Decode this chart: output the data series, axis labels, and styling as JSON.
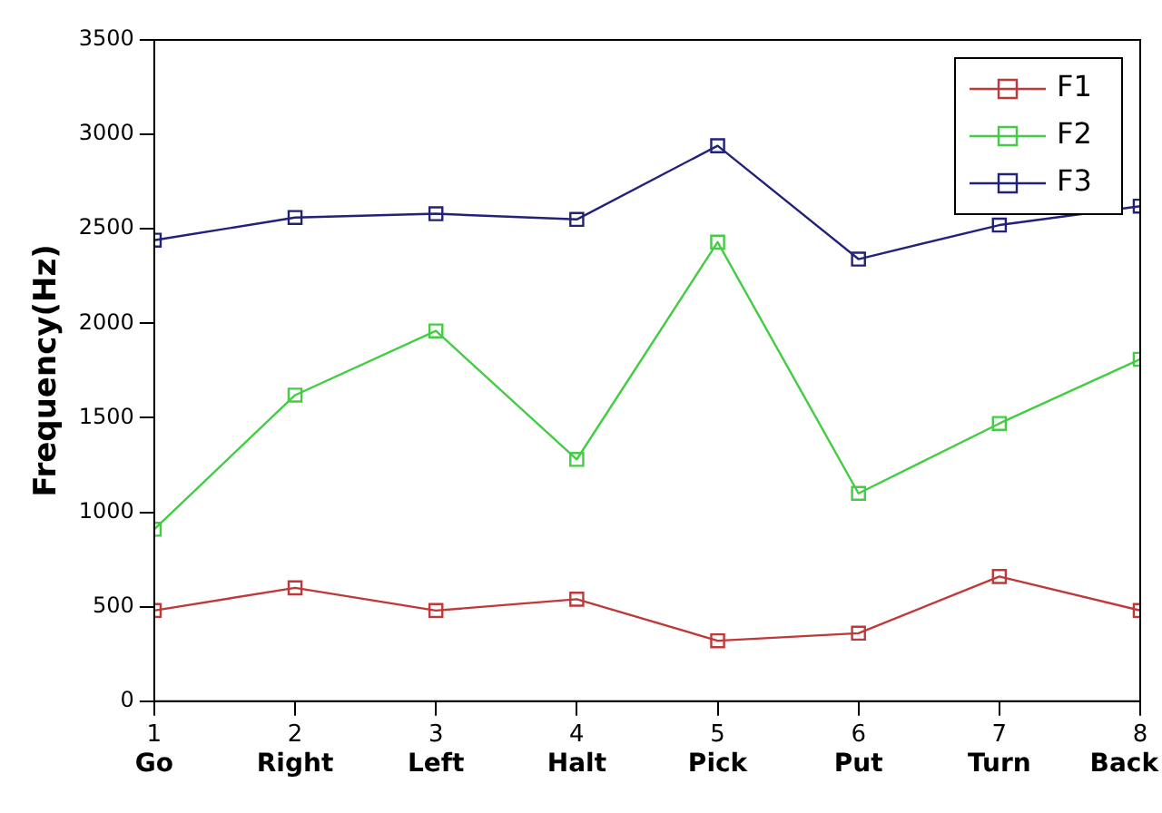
{
  "chart_data": {
    "type": "line",
    "ylabel": "Frequency(Hz)",
    "x": [
      1,
      2,
      3,
      4,
      5,
      6,
      7,
      8
    ],
    "series": [
      {
        "name": "F1",
        "color": "#c03838",
        "values": [
          480,
          600,
          480,
          540,
          320,
          360,
          660,
          480
        ]
      },
      {
        "name": "F2",
        "color": "#44cc44",
        "values": [
          910,
          1620,
          1960,
          1280,
          2430,
          1100,
          1470,
          1810
        ]
      },
      {
        "name": "F3",
        "color": "#22227a",
        "values": [
          2440,
          2560,
          2580,
          2550,
          2940,
          2340,
          2520,
          2620
        ]
      }
    ],
    "xlim": [
      1,
      8
    ],
    "xticks": [
      1,
      2,
      3,
      4,
      5,
      6,
      7,
      8
    ],
    "ylim": [
      0,
      3500
    ],
    "yticks": [
      0,
      500,
      1000,
      1500,
      2000,
      2500,
      3000,
      3500
    ],
    "annotations": [
      "Go",
      "Right",
      "Left",
      "Halt",
      "Pick",
      "Put",
      "Turn",
      "Back"
    ],
    "grid": false,
    "legend": "top right",
    "marker": "square",
    "line_style": "solid"
  }
}
